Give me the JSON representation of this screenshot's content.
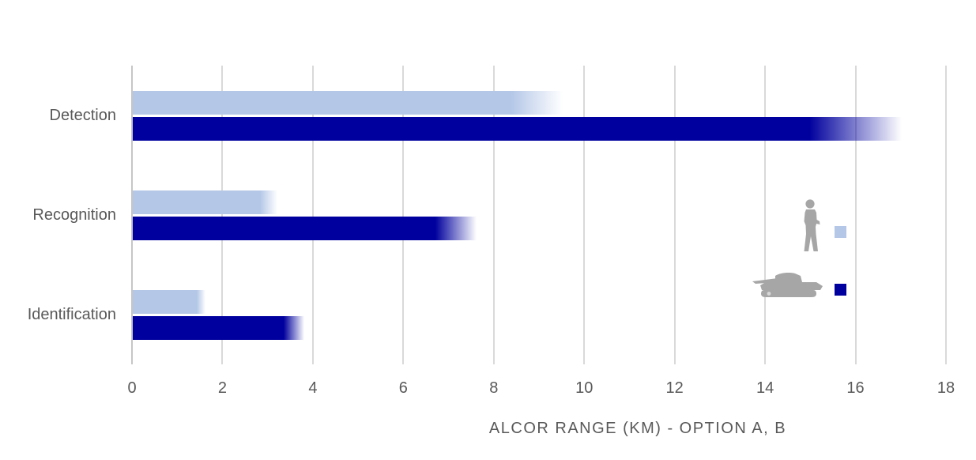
{
  "chart_data": {
    "type": "bar",
    "orientation": "horizontal",
    "title": "",
    "xlabel": "ALCOR RANGE (KM) - OPTION A, B",
    "categories": [
      "Detection",
      "Recognition",
      "Identification"
    ],
    "series": [
      {
        "name": "Option A (person target)",
        "legend_icon": "person-icon",
        "color": "#b4c7e7",
        "values": [
          9.5,
          3.2,
          1.6
        ]
      },
      {
        "name": "Option B (tank target)",
        "legend_icon": "tank-icon",
        "color": "#00009e",
        "values": [
          17,
          7.6,
          3.8
        ]
      }
    ],
    "xlim": [
      0,
      18
    ],
    "xticks": [
      0,
      2,
      4,
      6,
      8,
      10,
      12,
      14,
      16,
      18
    ],
    "grid": true,
    "bar_style": "solid fading to transparent at bar end (fade starts ~88% of length)",
    "legend_position": "right-middle, icons only (no text)"
  },
  "colors": {
    "background": "#ffffff",
    "gridline": "#d9d9d9",
    "axis_line": "#c6c6c6",
    "text": "#595959",
    "silhouette": "#a6a6a6",
    "series_light": "#b4c7e7",
    "series_dark": "#00009e"
  },
  "icons": {
    "legend_person": "person-icon",
    "legend_tank": "tank-icon"
  }
}
